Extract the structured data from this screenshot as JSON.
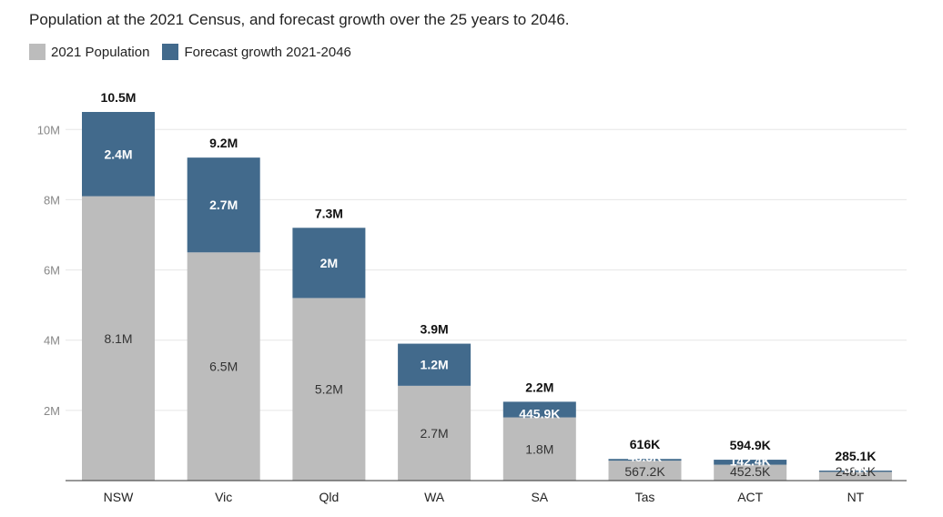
{
  "chart_data": {
    "type": "bar",
    "stacked": true,
    "title": "Population at the 2021 Census, and forecast growth over the 25 years to 2046.",
    "xlabel": "",
    "ylabel": "",
    "ylim": [
      0,
      10500000
    ],
    "yticks": [
      {
        "value": 2000000,
        "label": "2M"
      },
      {
        "value": 4000000,
        "label": "4M"
      },
      {
        "value": 6000000,
        "label": "6M"
      },
      {
        "value": 8000000,
        "label": "8M"
      },
      {
        "value": 10000000,
        "label": "10M"
      }
    ],
    "grid": true,
    "legend_position": "top-left",
    "categories": [
      "NSW",
      "Vic",
      "Qld",
      "WA",
      "SA",
      "Tas",
      "ACT",
      "NT"
    ],
    "series": [
      {
        "name": "2021 Population",
        "color": "#bcbcbc",
        "values": [
          8100000,
          6500000,
          5200000,
          2700000,
          1800000,
          567200,
          452500,
          248100
        ],
        "labels": [
          "8.1M",
          "6.5M",
          "5.2M",
          "2.7M",
          "1.8M",
          "567.2K",
          "452.5K",
          "248.1K"
        ]
      },
      {
        "name": "Forecast growth 2021-2046",
        "color": "#426a8c",
        "values": [
          2400000,
          2700000,
          2000000,
          1200000,
          445900,
          48800,
          142400,
          37000
        ],
        "labels": [
          "2.4M",
          "2.7M",
          "2M",
          "1.2M",
          "445.9K",
          "48.8K",
          "142.4K",
          "37K"
        ]
      }
    ],
    "totals": [
      "10.5M",
      "9.2M",
      "7.3M",
      "3.9M",
      "2.2M",
      "616K",
      "594.9K",
      "285.1K"
    ]
  }
}
